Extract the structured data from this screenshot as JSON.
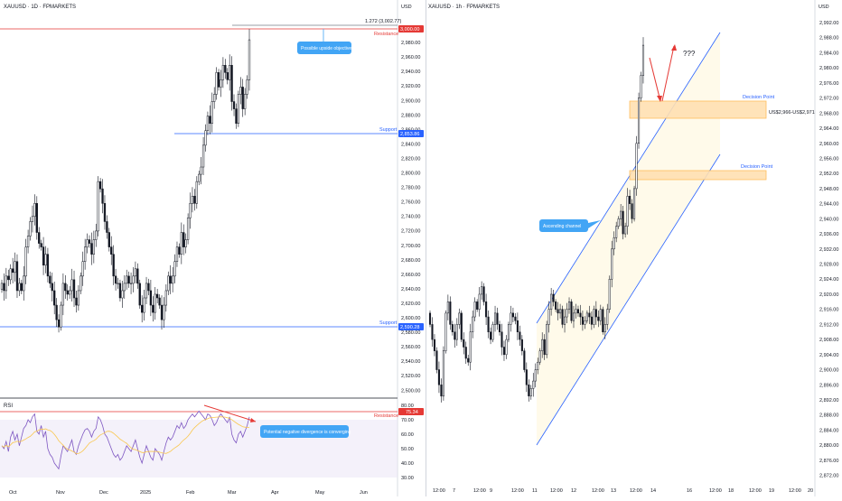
{
  "left_chart": {
    "title": "XAUUSD · 1D · FPMARKETS",
    "currency": "USD",
    "y_ticks": [
      "3,000.00",
      "2,980.00",
      "2,960.00",
      "2,940.00",
      "2,920.00",
      "2,900.00",
      "2,880.00",
      "2,860.00",
      "2,840.00",
      "2,820.00",
      "2,800.00",
      "2,780.00",
      "2,760.00",
      "2,740.00",
      "2,720.00",
      "2,700.00",
      "2,680.00",
      "2,660.00",
      "2,640.00",
      "2,620.00",
      "2,600.00",
      "2,580.00",
      "2,560.00",
      "2,540.00",
      "2,520.00",
      "2,500.00"
    ],
    "x_ticks": [
      "Oct",
      "Nov",
      "Dec",
      "2025",
      "Feb",
      "Mar",
      "Apr",
      "May",
      "Jun"
    ],
    "fib_label": "1.272 (3,002.77)",
    "resistance_label": "Resistance",
    "resistance_value": "3,000.00",
    "support_upper_label": "Support",
    "support_upper_value": "2,853.86",
    "support_lower_label": "Support",
    "support_lower_value": "2,590.28",
    "callout": "Possible upside objective",
    "colors": {
      "up": "#131722",
      "down": "#131722",
      "resistance": "#e53935",
      "support": "#2962ff",
      "callout": "#42a5f5",
      "rsi": "#7e57c2",
      "rsi_ma": "#f9c74f"
    }
  },
  "rsi": {
    "title": "RSI",
    "y_ticks": [
      "80.00",
      "70.00",
      "60.00",
      "50.00",
      "40.00",
      "30.00"
    ],
    "resistance_label": "Resistance",
    "resistance_value": "75.34",
    "callout": "Potential negative divergence is converging"
  },
  "right_chart": {
    "title": "XAUUSD · 1h · FPMARKETS",
    "currency": "USD",
    "y_ticks": [
      "2,992.00",
      "2,988.00",
      "2,984.00",
      "2,980.00",
      "2,976.00",
      "2,972.00",
      "2,968.00",
      "2,964.00",
      "2,960.00",
      "2,956.00",
      "2,952.00",
      "2,948.00",
      "2,944.00",
      "2,940.00",
      "2,936.00",
      "2,932.00",
      "2,928.00",
      "2,924.00",
      "2,920.00",
      "2,916.00",
      "2,912.00",
      "2,908.00",
      "2,904.00",
      "2,900.00",
      "2,896.00",
      "2,892.00",
      "2,888.00",
      "2,884.00",
      "2,880.00",
      "2,876.00",
      "2,872.00"
    ],
    "x_ticks": [
      "12:00",
      "7",
      "12:00",
      "9",
      "12:00",
      "11",
      "12:00",
      "12",
      "12:00",
      "13",
      "12:00",
      "14",
      "16",
      "12:00",
      "18",
      "12:00",
      "19",
      "12:00",
      "20"
    ],
    "decision_upper_label": "Decision Point",
    "decision_upper_value": "US$2,966-US$2,971",
    "decision_lower_label": "Decision Point",
    "channel_callout": "Ascending channel",
    "question": "???",
    "colors": {
      "channel": "#2962ff",
      "zone": "#ffb74d",
      "arrow": "#e53935"
    }
  },
  "chart_data": [
    {
      "type": "candlestick",
      "title": "XAUUSD · 1D · FPMARKETS",
      "ylim": [
        2490,
        3010
      ],
      "levels": {
        "resistance": 3000.0,
        "fib_1272": 3002.77,
        "support_upper": 2853.86,
        "support_lower": 2590.28
      },
      "closes": [
        2650,
        2640,
        2660,
        2655,
        2670,
        2665,
        2680,
        2640,
        2650,
        2640,
        2660,
        2700,
        2715,
        2735,
        2742,
        2760,
        2720,
        2705,
        2700,
        2675,
        2690,
        2660,
        2650,
        2640,
        2620,
        2600,
        2590,
        2620,
        2650,
        2640,
        2635,
        2640,
        2655,
        2630,
        2620,
        2640,
        2660,
        2680,
        2700,
        2710,
        2705,
        2690,
        2710,
        2722,
        2790,
        2780,
        2760,
        2735,
        2720,
        2700,
        2690,
        2660,
        2650,
        2650,
        2630,
        2640,
        2650,
        2660,
        2650,
        2650,
        2660,
        2670,
        2650,
        2620,
        2610,
        2630,
        2650,
        2640,
        2620,
        2610,
        2635,
        2630,
        2620,
        2600,
        2620,
        2640,
        2660,
        2650,
        2660,
        2680,
        2700,
        2690,
        2720,
        2700,
        2710,
        2740,
        2760,
        2770,
        2760,
        2790,
        2800,
        2810,
        2840,
        2860,
        2880,
        2870,
        2900,
        2910,
        2940,
        2920,
        2930,
        2950,
        2940,
        2930,
        2950,
        2900,
        2890,
        2870,
        2910,
        2920,
        2890,
        2910,
        2930,
        2985
      ]
    },
    {
      "type": "line",
      "title": "RSI",
      "ylim": [
        25,
        85
      ],
      "levels": {
        "resistance": 75.34
      },
      "values": [
        52,
        50,
        55,
        48,
        58,
        62,
        56,
        60,
        52,
        58,
        64,
        66,
        70,
        68,
        72,
        74,
        62,
        60,
        66,
        58,
        62,
        50,
        46,
        44,
        40,
        38,
        36,
        45,
        52,
        50,
        48,
        52,
        56,
        48,
        46,
        52,
        56,
        60,
        63,
        64,
        62,
        58,
        62,
        64,
        72,
        70,
        66,
        60,
        58,
        54,
        50,
        46,
        44,
        46,
        42,
        44,
        48,
        52,
        50,
        48,
        52,
        56,
        50,
        44,
        40,
        46,
        52,
        48,
        44,
        42,
        50,
        48,
        46,
        42,
        48,
        54,
        58,
        56,
        58,
        62,
        66,
        64,
        68,
        64,
        66,
        70,
        72,
        74,
        72,
        74,
        76,
        74,
        72,
        70,
        74,
        73,
        70,
        66,
        68,
        72,
        74,
        72,
        70,
        68,
        72,
        60,
        56,
        54,
        60,
        62,
        58,
        62,
        66,
        72
      ]
    },
    {
      "type": "candlestick",
      "title": "XAUUSD · 1h · FPMARKETS",
      "ylim": [
        2870,
        2994
      ],
      "zones": [
        {
          "label": "Decision Point",
          "low": 2966,
          "high": 2971
        },
        {
          "label": "Decision Point",
          "low": 2948,
          "high": 2951
        }
      ],
      "closes": [
        2912,
        2908,
        2905,
        2900,
        2896,
        2893,
        2905,
        2915,
        2918,
        2912,
        2910,
        2908,
        2912,
        2915,
        2908,
        2906,
        2903,
        2902,
        2910,
        2914,
        2918,
        2916,
        2920,
        2922,
        2918,
        2914,
        2910,
        2908,
        2912,
        2915,
        2912,
        2910,
        2906,
        2904,
        2908,
        2912,
        2915,
        2914,
        2913,
        2910,
        2908,
        2905,
        2900,
        2896,
        2893,
        2895,
        2897,
        2900,
        2902,
        2905,
        2908,
        2904,
        2912,
        2916,
        2920,
        2918,
        2916,
        2915,
        2916,
        2912,
        2914,
        2916,
        2918,
        2913,
        2915,
        2916,
        2915,
        2914,
        2912,
        2913,
        2915,
        2914,
        2912,
        2916,
        2914,
        2913,
        2916,
        2910,
        2912,
        2916,
        2924,
        2932,
        2935,
        2938,
        2940,
        2942,
        2936,
        2938,
        2946,
        2944,
        2940,
        2948,
        2960,
        2972,
        2978,
        2986
      ]
    }
  ]
}
